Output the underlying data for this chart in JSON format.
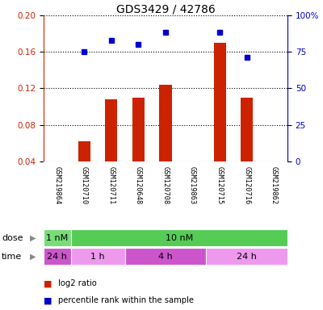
{
  "title": "GDS3429 / 42786",
  "samples": [
    "GSM219864",
    "GSM120710",
    "GSM120711",
    "GSM120648",
    "GSM120708",
    "GSM219863",
    "GSM120715",
    "GSM120716",
    "GSM219862"
  ],
  "log2_ratio": [
    0.0,
    0.062,
    0.108,
    0.11,
    0.124,
    0.0,
    0.17,
    0.11,
    0.0
  ],
  "percentile_rank": [
    null,
    0.16,
    0.173,
    0.168,
    0.182,
    null,
    0.182,
    0.154,
    null
  ],
  "ylim_left": [
    0.04,
    0.2
  ],
  "ylim_right": [
    0,
    100
  ],
  "yticks_left": [
    0.04,
    0.08,
    0.12,
    0.16,
    0.2
  ],
  "yticks_right": [
    0,
    25,
    50,
    75,
    100
  ],
  "bar_color": "#cc2200",
  "dot_color": "#0000cc",
  "bar_bottom": 0.04,
  "dose_labels": [
    {
      "text": "1 nM",
      "start": 0,
      "end": 1,
      "color": "#77dd77"
    },
    {
      "text": "10 nM",
      "start": 1,
      "end": 9,
      "color": "#55cc55"
    }
  ],
  "time_labels": [
    {
      "text": "24 h",
      "start": 0,
      "end": 1,
      "color": "#cc55cc"
    },
    {
      "text": "1 h",
      "start": 1,
      "end": 3,
      "color": "#ee99ee"
    },
    {
      "text": "4 h",
      "start": 3,
      "end": 6,
      "color": "#cc55cc"
    },
    {
      "text": "24 h",
      "start": 6,
      "end": 9,
      "color": "#ee99ee"
    }
  ],
  "legend_items": [
    {
      "label": "log2 ratio",
      "color": "#cc2200"
    },
    {
      "label": "percentile rank within the sample",
      "color": "#0000cc"
    }
  ],
  "tick_label_color_left": "#cc2200",
  "tick_label_color_right": "#0000cc",
  "background_color": "#ffffff",
  "label_area_color": "#cccccc",
  "label_divider_color": "#ffffff"
}
